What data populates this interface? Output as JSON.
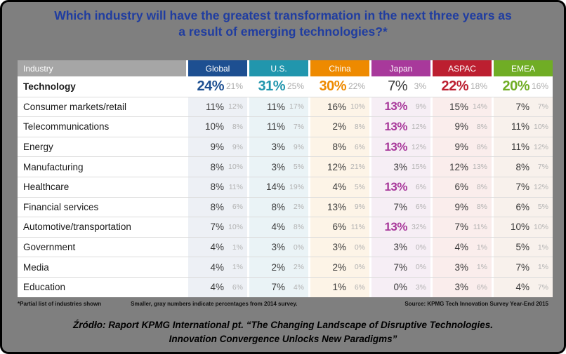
{
  "title": {
    "line1": "Which industry will have the greatest transformation in the next three years as",
    "line2": "a result of emerging technologies?*"
  },
  "colors": {
    "background": "#7f7f7f",
    "title_blue": "#203da0",
    "industry_header_gray": "#a6a6a6",
    "secondary_value_gray": "#b2b2b2"
  },
  "table": {
    "industry_header": "Industry",
    "columns": [
      {
        "label": "Global",
        "color": "#1d4f91",
        "tint": "#edf0f5"
      },
      {
        "label": "U.S.",
        "color": "#2196ad",
        "tint": "#eaf3f6"
      },
      {
        "label": "China",
        "color": "#ee8a00",
        "tint": "#fdf4e7"
      },
      {
        "label": "Japan",
        "color": "#a8399b",
        "tint": "#f6eef5"
      },
      {
        "label": "ASPAC",
        "color": "#bc1f30",
        "tint": "#faedec"
      },
      {
        "label": "EMEA",
        "color": "#70ad25",
        "tint": "#f8f1ec"
      }
    ],
    "rows": [
      {
        "industry": "Technology",
        "bold": true,
        "cells": [
          {
            "value": "24%",
            "prev": "21%",
            "highlight": true
          },
          {
            "value": "31%",
            "prev": "25%",
            "highlight": true
          },
          {
            "value": "30%",
            "prev": "22%",
            "highlight": true
          },
          {
            "value": "7%",
            "prev": "3%",
            "highlight": false
          },
          {
            "value": "22%",
            "prev": "18%",
            "highlight": true
          },
          {
            "value": "20%",
            "prev": "16%",
            "highlight": true
          }
        ]
      },
      {
        "industry": "Consumer markets/retail",
        "bold": false,
        "cells": [
          {
            "value": "11%",
            "prev": "12%",
            "highlight": false
          },
          {
            "value": "11%",
            "prev": "17%",
            "highlight": false
          },
          {
            "value": "16%",
            "prev": "10%",
            "highlight": false
          },
          {
            "value": "13%",
            "prev": "9%",
            "highlight": true
          },
          {
            "value": "15%",
            "prev": "14%",
            "highlight": false
          },
          {
            "value": "7%",
            "prev": "7%",
            "highlight": false
          }
        ]
      },
      {
        "industry": "Telecommunications",
        "bold": false,
        "cells": [
          {
            "value": "10%",
            "prev": "8%",
            "highlight": false
          },
          {
            "value": "11%",
            "prev": "7%",
            "highlight": false
          },
          {
            "value": "2%",
            "prev": "8%",
            "highlight": false
          },
          {
            "value": "13%",
            "prev": "12%",
            "highlight": true
          },
          {
            "value": "9%",
            "prev": "8%",
            "highlight": false
          },
          {
            "value": "11%",
            "prev": "10%",
            "highlight": false
          }
        ]
      },
      {
        "industry": "Energy",
        "bold": false,
        "cells": [
          {
            "value": "9%",
            "prev": "9%",
            "highlight": false
          },
          {
            "value": "3%",
            "prev": "9%",
            "highlight": false
          },
          {
            "value": "8%",
            "prev": "6%",
            "highlight": false
          },
          {
            "value": "13%",
            "prev": "12%",
            "highlight": true
          },
          {
            "value": "9%",
            "prev": "8%",
            "highlight": false
          },
          {
            "value": "11%",
            "prev": "12%",
            "highlight": false
          }
        ]
      },
      {
        "industry": "Manufacturing",
        "bold": false,
        "cells": [
          {
            "value": "8%",
            "prev": "10%",
            "highlight": false
          },
          {
            "value": "3%",
            "prev": "5%",
            "highlight": false
          },
          {
            "value": "12%",
            "prev": "21%",
            "highlight": false
          },
          {
            "value": "3%",
            "prev": "15%",
            "highlight": false
          },
          {
            "value": "12%",
            "prev": "13%",
            "highlight": false
          },
          {
            "value": "8%",
            "prev": "7%",
            "highlight": false
          }
        ]
      },
      {
        "industry": "Healthcare",
        "bold": false,
        "cells": [
          {
            "value": "8%",
            "prev": "11%",
            "highlight": false
          },
          {
            "value": "14%",
            "prev": "19%",
            "highlight": false
          },
          {
            "value": "4%",
            "prev": "5%",
            "highlight": false
          },
          {
            "value": "13%",
            "prev": "6%",
            "highlight": true
          },
          {
            "value": "6%",
            "prev": "8%",
            "highlight": false
          },
          {
            "value": "7%",
            "prev": "12%",
            "highlight": false
          }
        ]
      },
      {
        "industry": "Financial services",
        "bold": false,
        "cells": [
          {
            "value": "8%",
            "prev": "6%",
            "highlight": false
          },
          {
            "value": "8%",
            "prev": "2%",
            "highlight": false
          },
          {
            "value": "13%",
            "prev": "9%",
            "highlight": false
          },
          {
            "value": "7%",
            "prev": "6%",
            "highlight": false
          },
          {
            "value": "9%",
            "prev": "8%",
            "highlight": false
          },
          {
            "value": "6%",
            "prev": "5%",
            "highlight": false
          }
        ]
      },
      {
        "industry": "Automotive/transportation",
        "bold": false,
        "cells": [
          {
            "value": "7%",
            "prev": "10%",
            "highlight": false
          },
          {
            "value": "4%",
            "prev": "8%",
            "highlight": false
          },
          {
            "value": "6%",
            "prev": "11%",
            "highlight": false
          },
          {
            "value": "13%",
            "prev": "32%",
            "highlight": true
          },
          {
            "value": "7%",
            "prev": "11%",
            "highlight": false
          },
          {
            "value": "10%",
            "prev": "10%",
            "highlight": false
          }
        ]
      },
      {
        "industry": "Government",
        "bold": false,
        "cells": [
          {
            "value": "4%",
            "prev": "1%",
            "highlight": false
          },
          {
            "value": "3%",
            "prev": "0%",
            "highlight": false
          },
          {
            "value": "3%",
            "prev": "0%",
            "highlight": false
          },
          {
            "value": "3%",
            "prev": "0%",
            "highlight": false
          },
          {
            "value": "4%",
            "prev": "1%",
            "highlight": false
          },
          {
            "value": "5%",
            "prev": "1%",
            "highlight": false
          }
        ]
      },
      {
        "industry": "Media",
        "bold": false,
        "cells": [
          {
            "value": "4%",
            "prev": "1%",
            "highlight": false
          },
          {
            "value": "2%",
            "prev": "2%",
            "highlight": false
          },
          {
            "value": "2%",
            "prev": "0%",
            "highlight": false
          },
          {
            "value": "7%",
            "prev": "0%",
            "highlight": false
          },
          {
            "value": "3%",
            "prev": "1%",
            "highlight": false
          },
          {
            "value": "7%",
            "prev": "1%",
            "highlight": false
          }
        ]
      },
      {
        "industry": "Education",
        "bold": false,
        "cells": [
          {
            "value": "4%",
            "prev": "6%",
            "highlight": false
          },
          {
            "value": "7%",
            "prev": "4%",
            "highlight": false
          },
          {
            "value": "1%",
            "prev": "6%",
            "highlight": false
          },
          {
            "value": "0%",
            "prev": "3%",
            "highlight": false
          },
          {
            "value": "3%",
            "prev": "6%",
            "highlight": false
          },
          {
            "value": "4%",
            "prev": "7%",
            "highlight": false
          }
        ]
      }
    ]
  },
  "footnotes": {
    "left": "*Partial list of industries shown",
    "middle": "Smaller, gray numbers indicate percentages from 2014 survey.",
    "source": "Source: KPMG Tech Innovation Survey Year-End 2015"
  },
  "caption": {
    "line1": "Źródło: Raport KPMG International pt. “The Changing Landscape of Disruptive Technologies.",
    "line2": "Innovation Convergence Unlocks New Paradigms”"
  },
  "chart_data": {
    "type": "table",
    "title": "Which industry will have the greatest transformation in the next three years as a result of emerging technologies?*",
    "categories": [
      "Technology",
      "Consumer markets/retail",
      "Telecommunications",
      "Energy",
      "Manufacturing",
      "Healthcare",
      "Financial services",
      "Automotive/transportation",
      "Government",
      "Media",
      "Education"
    ],
    "series": [
      {
        "name": "Global",
        "values": [
          24,
          11,
          10,
          9,
          8,
          8,
          8,
          7,
          4,
          4,
          4
        ],
        "values_2014": [
          21,
          12,
          8,
          9,
          10,
          11,
          6,
          10,
          1,
          1,
          6
        ]
      },
      {
        "name": "U.S.",
        "values": [
          31,
          11,
          11,
          3,
          3,
          14,
          8,
          4,
          3,
          2,
          7
        ],
        "values_2014": [
          25,
          17,
          7,
          9,
          5,
          19,
          2,
          8,
          0,
          2,
          4
        ]
      },
      {
        "name": "China",
        "values": [
          30,
          16,
          2,
          8,
          12,
          4,
          13,
          6,
          3,
          2,
          1
        ],
        "values_2014": [
          22,
          10,
          8,
          6,
          21,
          5,
          9,
          11,
          0,
          0,
          6
        ]
      },
      {
        "name": "Japan",
        "values": [
          7,
          13,
          13,
          13,
          3,
          13,
          7,
          13,
          3,
          7,
          0
        ],
        "values_2014": [
          3,
          9,
          12,
          12,
          15,
          6,
          6,
          32,
          0,
          0,
          3
        ]
      },
      {
        "name": "ASPAC",
        "values": [
          22,
          15,
          9,
          9,
          12,
          6,
          9,
          7,
          4,
          3,
          3
        ],
        "values_2014": [
          18,
          14,
          8,
          8,
          13,
          8,
          8,
          11,
          1,
          1,
          6
        ]
      },
      {
        "name": "EMEA",
        "values": [
          20,
          7,
          11,
          11,
          8,
          7,
          6,
          10,
          5,
          7,
          4
        ],
        "values_2014": [
          16,
          7,
          10,
          12,
          7,
          12,
          5,
          10,
          1,
          1,
          7
        ]
      }
    ],
    "notes": "Units are percentages; large colored numbers mark the highest value within each region column; smaller gray numbers are 2014 survey percentages."
  }
}
